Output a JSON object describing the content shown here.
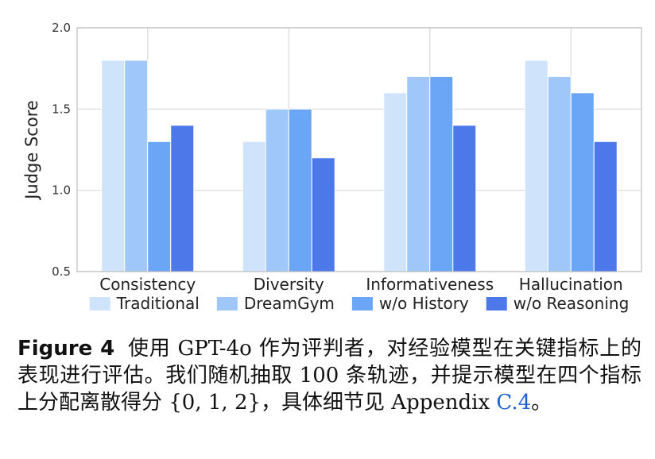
{
  "chart_data": {
    "type": "bar",
    "categories": [
      "Consistency",
      "Diversity",
      "Informativeness",
      "Hallucination"
    ],
    "series": [
      {
        "name": "Traditional",
        "values": [
          1.8,
          1.3,
          1.6,
          1.8
        ],
        "color": "#cfe4fb"
      },
      {
        "name": "DreamGym",
        "values": [
          1.8,
          1.5,
          1.7,
          1.7
        ],
        "color": "#9fc7f9"
      },
      {
        "name": "w/o History",
        "values": [
          1.3,
          1.5,
          1.7,
          1.6
        ],
        "color": "#6aa6f5"
      },
      {
        "name": "w/o Reasoning",
        "values": [
          1.4,
          1.2,
          1.4,
          1.3
        ],
        "color": "#4c78ea"
      }
    ],
    "ylabel": "Judge Score",
    "ylim": [
      0.5,
      2.0
    ],
    "yticks": [
      "0.5",
      "1.0",
      "1.5",
      "2.0"
    ],
    "grid": true,
    "legend_position": "bottom"
  },
  "caption": {
    "label": "Figure 4",
    "text": "使用 GPT-4o 作为评判者，对经验模型在关键指标上的表现进行评估。我们随机抽取 100 条轨迹，并提示模型在四个指标上分配离散得分 {0, 1, 2}，具体细节见 Appendix ",
    "ref": "C.4",
    "end": "。"
  }
}
